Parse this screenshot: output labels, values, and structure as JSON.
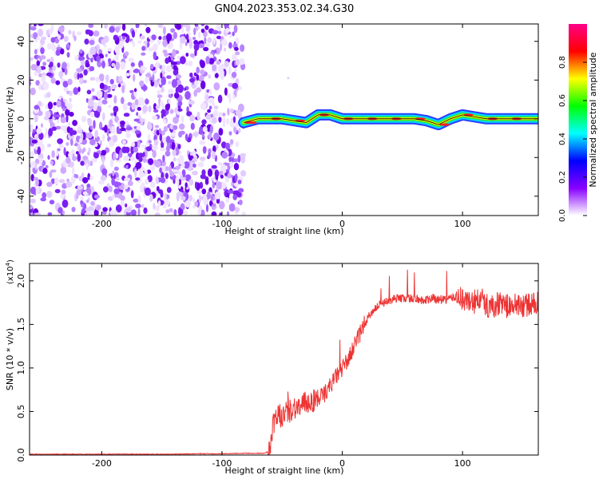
{
  "title": "GN04.2023.353.02.34.G30",
  "chart_data": [
    {
      "type": "heatmap",
      "xlabel": "Height of straight line (km)",
      "ylabel": "Frequency (Hz)",
      "xlim": [
        -260,
        163
      ],
      "ylim": [
        -50,
        49
      ],
      "xticks": [
        -200,
        -100,
        0,
        100
      ],
      "yticks": [
        -40,
        -20,
        0,
        20,
        40
      ],
      "grid": false,
      "noise_region_x": [
        -260,
        -82
      ],
      "signal_line": {
        "x": [
          -82,
          -70,
          -60,
          -50,
          -40,
          -30,
          -20,
          -10,
          0,
          10,
          20,
          30,
          40,
          50,
          60,
          70,
          80,
          90,
          100,
          110,
          120,
          130,
          140,
          150,
          163
        ],
        "y": [
          -2,
          0,
          0,
          0,
          -1,
          -2,
          2,
          2,
          0,
          0,
          0,
          0,
          0,
          0,
          0,
          -1,
          -3,
          0,
          2,
          1,
          0,
          0,
          0,
          0,
          0
        ]
      },
      "colorbar": {
        "label": "Normalized spectral amplitude",
        "ticks": [
          0.0,
          0.2,
          0.4,
          0.6,
          0.8
        ],
        "range": [
          0,
          1
        ],
        "colors": [
          "#ffffff",
          "#8800ff",
          "#0000ff",
          "#00ffff",
          "#00ff00",
          "#ffff00",
          "#ff0000",
          "#ff0088"
        ]
      }
    },
    {
      "type": "line",
      "xlabel": "Height of straight line (km)",
      "ylabel": "SNR (10 * v/v)",
      "scale_label": "(x10",
      "scale_exp": "4",
      "scale_suffix": ")",
      "xlim": [
        -260,
        163
      ],
      "ylim": [
        0,
        2.2
      ],
      "xticks": [
        -200,
        -100,
        0,
        100
      ],
      "yticks": [
        0.0,
        0.5,
        1.0,
        1.5,
        2.0
      ],
      "line_color": "#ee3333",
      "series": [
        {
          "x": [
            -260,
            -240,
            -220,
            -200,
            -180,
            -160,
            -140,
            -120,
            -100,
            -80,
            -65,
            -60,
            -58,
            -55,
            -50,
            -45,
            -40,
            -35,
            -30,
            -25,
            -20,
            -15,
            -10,
            -5,
            0,
            5,
            10,
            15,
            20,
            25,
            30,
            35,
            40,
            45,
            50,
            55,
            60,
            65,
            70,
            75,
            80,
            85,
            90,
            95,
            100,
            105,
            110,
            115,
            120,
            125,
            130,
            135,
            140,
            145,
            150,
            155,
            163
          ],
          "y": [
            0.01,
            0.01,
            0.01,
            0.01,
            0.01,
            0.01,
            0.01,
            0.015,
            0.015,
            0.02,
            0.02,
            0.05,
            0.3,
            0.45,
            0.45,
            0.5,
            0.55,
            0.55,
            0.6,
            0.62,
            0.65,
            0.7,
            0.8,
            0.9,
            1.0,
            1.1,
            1.25,
            1.4,
            1.55,
            1.65,
            1.72,
            1.75,
            1.78,
            1.8,
            1.8,
            1.8,
            1.8,
            1.78,
            1.78,
            1.8,
            1.78,
            1.78,
            1.8,
            1.82,
            1.8,
            1.75,
            1.75,
            1.8,
            1.72,
            1.7,
            1.75,
            1.72,
            1.7,
            1.72,
            1.72,
            1.72,
            1.75
          ]
        }
      ]
    }
  ]
}
